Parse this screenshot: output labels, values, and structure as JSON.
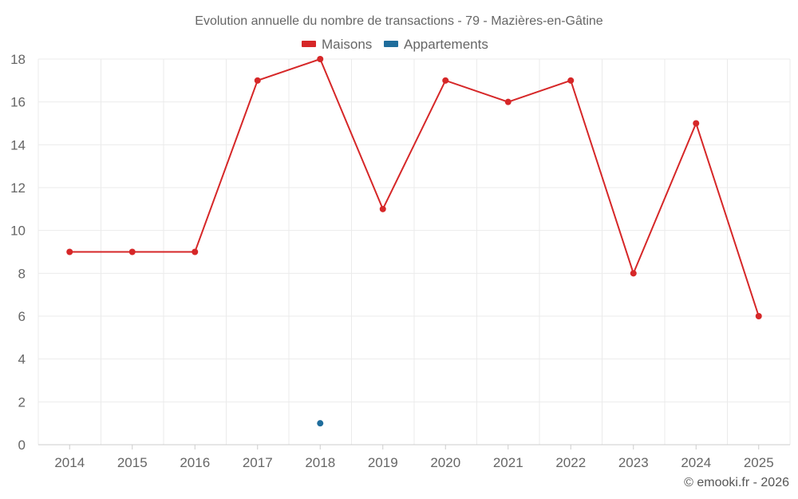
{
  "chart_data": {
    "type": "line",
    "title": "Evolution annuelle du nombre de transactions - 79 - Mazières-en-Gâtine",
    "categories": [
      "2014",
      "2015",
      "2016",
      "2017",
      "2018",
      "2019",
      "2020",
      "2021",
      "2022",
      "2023",
      "2024",
      "2025"
    ],
    "series": [
      {
        "name": "Maisons",
        "color": "#d62728",
        "values": [
          9,
          9,
          9,
          17,
          18,
          11,
          17,
          16,
          17,
          8,
          15,
          6
        ]
      },
      {
        "name": "Appartements",
        "color": "#1f6d9c",
        "values": [
          null,
          null,
          null,
          null,
          1,
          null,
          null,
          null,
          null,
          null,
          null,
          null
        ]
      }
    ],
    "ylim": [
      0,
      18
    ],
    "yticks": [
      0,
      2,
      4,
      6,
      8,
      10,
      12,
      14,
      16,
      18
    ],
    "xlabel": "",
    "ylabel": "",
    "grid": true,
    "legend": "top-center"
  },
  "credit": "© emooki.fr - 2026"
}
